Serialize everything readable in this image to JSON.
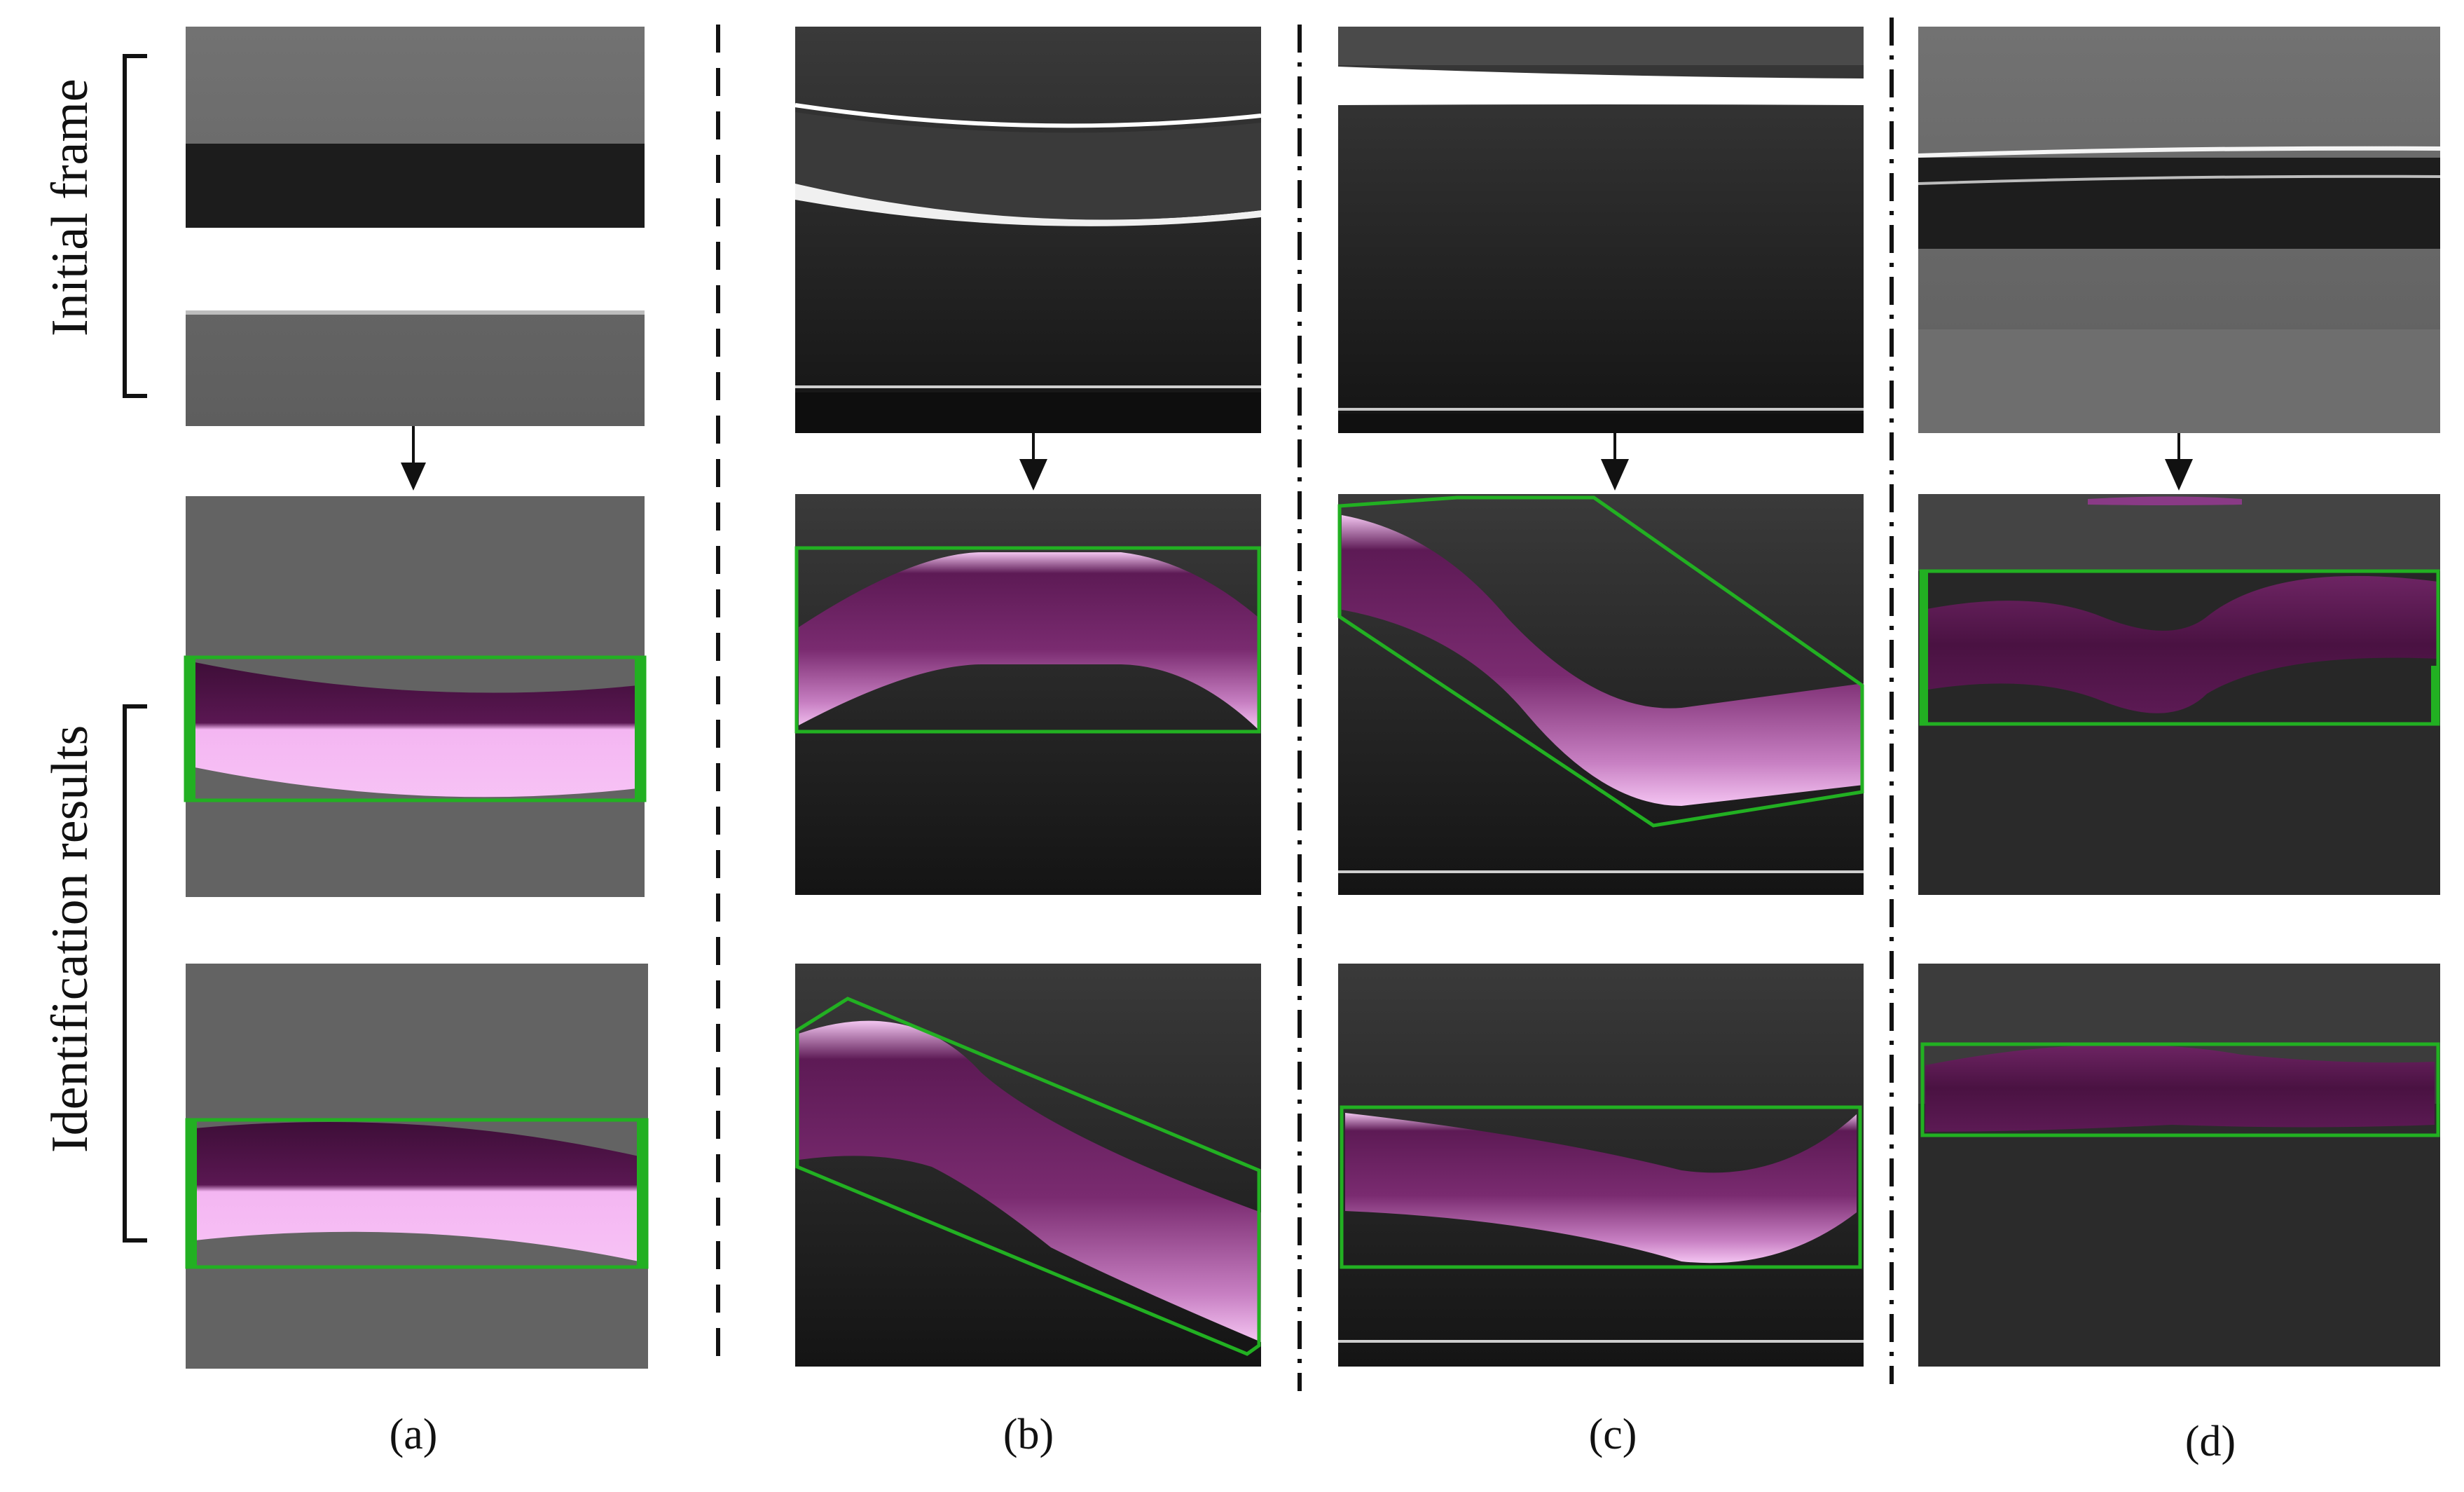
{
  "row_labels": {
    "initial_frame": "Initial frame",
    "identification_results": "Identification results"
  },
  "columns": [
    {
      "id": "a",
      "label": "(a)"
    },
    {
      "id": "b",
      "label": "(b)"
    },
    {
      "id": "c",
      "label": "(c)"
    },
    {
      "id": "d",
      "label": "(d)"
    }
  ],
  "colors": {
    "box_outline": "#22b022",
    "tape_dark": "#4e1446",
    "tape_light": "#f2a8f0",
    "background_gray": "#6a6a6a",
    "background_dark": "#202020"
  }
}
